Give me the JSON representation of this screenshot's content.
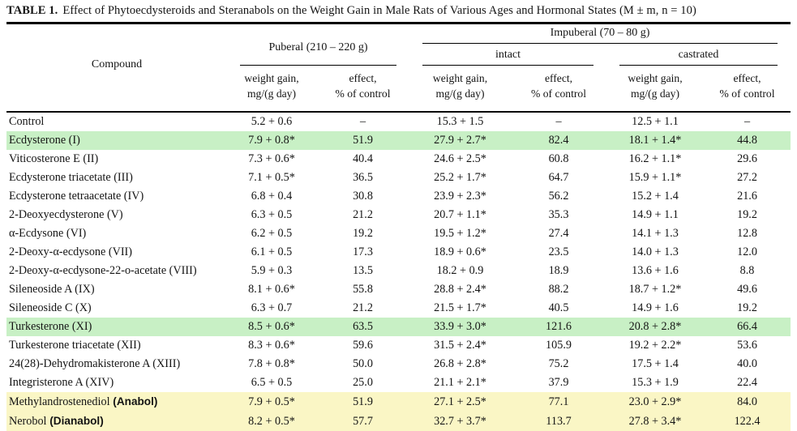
{
  "title": {
    "label": "TABLE 1.",
    "text": "Effect of Phytoecdysteroids and Steranabols on the Weight Gain in Male Rats of Various Ages and Hormonal States (M ± m, n = 10)"
  },
  "header": {
    "compound": "Compound",
    "puberal": "Puberal (210 – 220 g)",
    "impuberal": "Impuberal (70 – 80 g)",
    "intact": "intact",
    "castrated": "castrated",
    "weight_gain": "weight gain,\nmg/(g day)",
    "effect": "effect,\n% of control"
  },
  "colors": {
    "highlight_green": "#c8f0c5",
    "highlight_yellow": "#faf6c5"
  },
  "table": {
    "rows": [
      {
        "compound": "Control",
        "suffix": "",
        "highlight": "none",
        "values": [
          "5.2 + 0.6",
          "–",
          "15.3 + 1.5",
          "–",
          "12.5 + 1.1",
          "–"
        ]
      },
      {
        "compound": "Ecdysterone (I)",
        "suffix": "",
        "highlight": "green",
        "values": [
          "7.9 + 0.8*",
          "51.9",
          "27.9 + 2.7*",
          "82.4",
          "18.1 + 1.4*",
          "44.8"
        ]
      },
      {
        "compound": "Viticosterone E (II)",
        "suffix": "",
        "highlight": "none",
        "values": [
          "7.3 + 0.6*",
          "40.4",
          "24.6 + 2.5*",
          "60.8",
          "16.2 + 1.1*",
          "29.6"
        ]
      },
      {
        "compound": "Ecdysterone triacetate (III)",
        "suffix": "",
        "highlight": "none",
        "values": [
          "7.1 + 0.5*",
          "36.5",
          "25.2 + 1.7*",
          "64.7",
          "15.9 + 1.1*",
          "27.2"
        ]
      },
      {
        "compound": "Ecdysterone tetraacetate (IV)",
        "suffix": "",
        "highlight": "none",
        "values": [
          "6.8 + 0.4",
          "30.8",
          "23.9 + 2.3*",
          "56.2",
          "15.2 + 1.4",
          "21.6"
        ]
      },
      {
        "compound": "2-Deoxyecdysterone (V)",
        "suffix": "",
        "highlight": "none",
        "values": [
          "6.3 + 0.5",
          "21.2",
          "20.7 + 1.1*",
          "35.3",
          "14.9 + 1.1",
          "19.2"
        ]
      },
      {
        "compound": "α-Ecdysone (VI)",
        "suffix": "",
        "highlight": "none",
        "values": [
          "6.2 + 0.5",
          "19.2",
          "19.5 + 1.2*",
          "27.4",
          "14.1 + 1.3",
          "12.8"
        ]
      },
      {
        "compound": "2-Deoxy-α-ecdysone (VII)",
        "suffix": "",
        "highlight": "none",
        "values": [
          "6.1 + 0.5",
          "17.3",
          "18.9 + 0.6*",
          "23.5",
          "14.0 + 1.3",
          "12.0"
        ]
      },
      {
        "compound": "2-Deoxy-α-ecdysone-22-o-acetate (VIII)",
        "suffix": "",
        "highlight": "none",
        "values": [
          "5.9 + 0.3",
          "13.5",
          "18.2 + 0.9",
          "18.9",
          "13.6 + 1.6",
          "8.8"
        ]
      },
      {
        "compound": "Sileneoside A (IX)",
        "suffix": "",
        "highlight": "none",
        "values": [
          "8.1 + 0.6*",
          "55.8",
          "28.8 + 2.4*",
          "88.2",
          "18.7 + 1.2*",
          "49.6"
        ]
      },
      {
        "compound": "Sileneoside C (X)",
        "suffix": "",
        "highlight": "none",
        "values": [
          "6.3 + 0.7",
          "21.2",
          "21.5 + 1.7*",
          "40.5",
          "14.9 + 1.6",
          "19.2"
        ]
      },
      {
        "compound": "Turkesterone (XI)",
        "suffix": "",
        "highlight": "green",
        "values": [
          "8.5 + 0.6*",
          "63.5",
          "33.9 + 3.0*",
          "121.6",
          "20.8 + 2.8*",
          "66.4"
        ]
      },
      {
        "compound": "Turkesterone triacetate (XII)",
        "suffix": "",
        "highlight": "none",
        "values": [
          "8.3 + 0.6*",
          "59.6",
          "31.5 + 2.4*",
          "105.9",
          "19.2 + 2.2*",
          "53.6"
        ]
      },
      {
        "compound": "24(28)-Dehydromakisterone A (XIII)",
        "suffix": "",
        "highlight": "none",
        "values": [
          "7.8 + 0.8*",
          "50.0",
          "26.8 + 2.8*",
          "75.2",
          "17.5 + 1.4",
          "40.0"
        ]
      },
      {
        "compound": "Integristerone A (XIV)",
        "suffix": "",
        "highlight": "none",
        "values": [
          "6.5 + 0.5",
          "25.0",
          "21.1 + 2.1*",
          "37.9",
          "15.3 + 1.9",
          "22.4"
        ]
      },
      {
        "compound": "Methylandrostenediol",
        "suffix": "(Anabol)",
        "highlight": "yellow",
        "values": [
          "7.9 + 0.5*",
          "51.9",
          "27.1 + 2.5*",
          "77.1",
          "23.0 + 2.9*",
          "84.0"
        ]
      },
      {
        "compound": "Nerobol",
        "suffix": "(Dianabol)",
        "highlight": "yellow",
        "values": [
          "8.2 + 0.5*",
          "57.7",
          "32.7 + 3.7*",
          "113.7",
          "27.8 + 3.4*",
          "122.4"
        ]
      }
    ]
  }
}
